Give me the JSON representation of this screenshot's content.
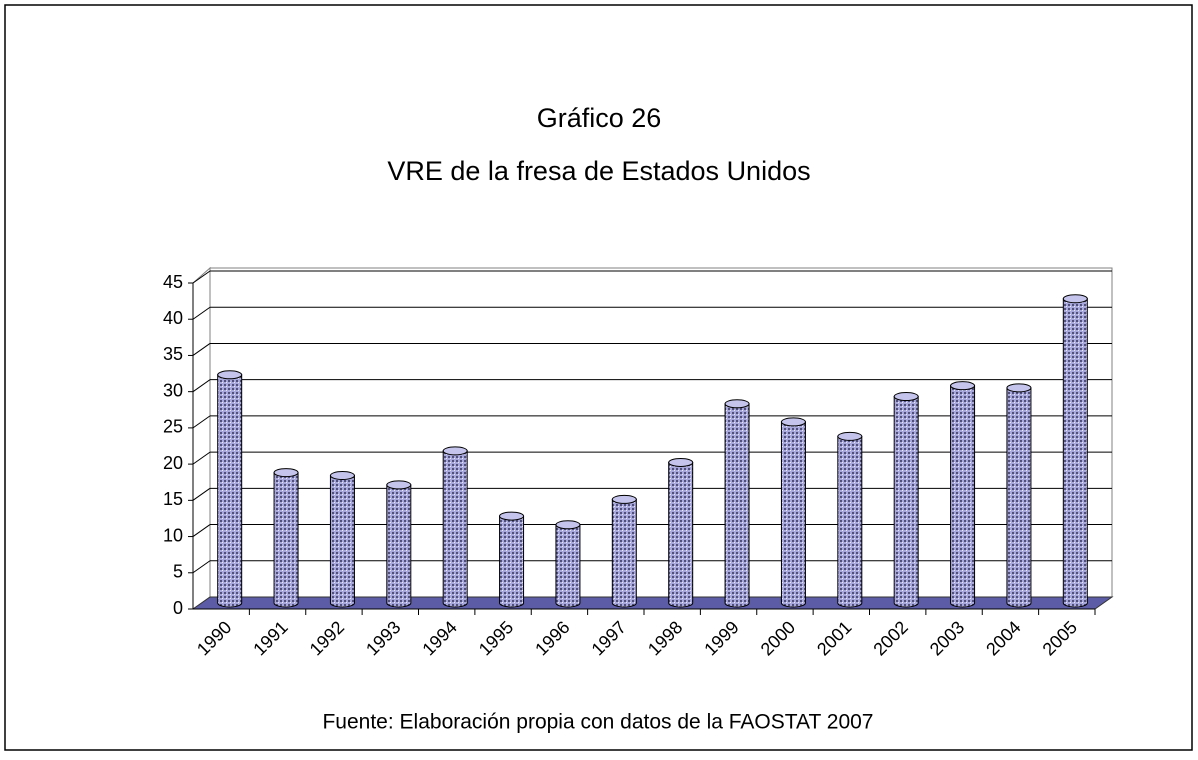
{
  "chart_data": {
    "type": "bar",
    "title": "Gráfico 26",
    "subtitle": "VRE de la fresa de Estados Unidos",
    "categories": [
      "1990",
      "1991",
      "1992",
      "1993",
      "1994",
      "1995",
      "1996",
      "1997",
      "1998",
      "1999",
      "2000",
      "2001",
      "2002",
      "2003",
      "2004",
      "2005"
    ],
    "values": [
      31.5,
      18,
      17.6,
      16.3,
      21,
      12,
      10.8,
      14.3,
      19.4,
      27.5,
      25,
      23,
      28.5,
      30,
      29.7,
      42
    ],
    "color": "#9a9ad0",
    "ylim": [
      0,
      45
    ],
    "yticks": [
      0,
      5,
      10,
      15,
      20,
      25,
      30,
      35,
      40,
      45
    ],
    "grid": true,
    "source": "Fuente: Elaboración propia con datos de la FAOSTAT 2007"
  }
}
